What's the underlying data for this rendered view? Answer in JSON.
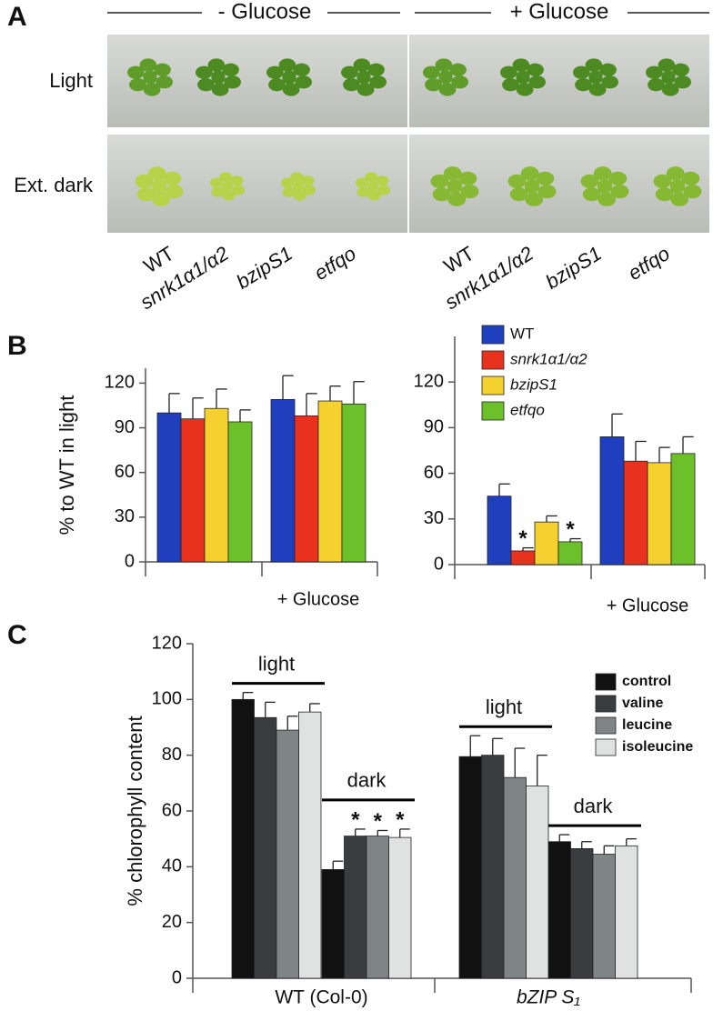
{
  "panel_labels": [
    "A",
    "B",
    "C"
  ],
  "panel_a": {
    "headers": [
      "- Glucose",
      "+ Glucose"
    ],
    "rows": [
      "Light",
      "Ext. dark"
    ],
    "genotypes": [
      "WT",
      "snrk1α1/α2",
      "bzipS1",
      "etfqo",
      "WT",
      "snrk1α1/α2",
      "bzipS1",
      "etfqo"
    ]
  },
  "chart_data": [
    {
      "type": "bar",
      "ylabel": "% to WT in light",
      "categories": [
        null,
        "+ Glucose"
      ],
      "ylim": [
        0,
        130
      ],
      "yticks": [
        0,
        30,
        60,
        90,
        120
      ],
      "grid": false,
      "series": [
        {
          "color": "#1f3fbf",
          "values": [
            100,
            109
          ],
          "errors": [
            13,
            16
          ]
        },
        {
          "color": "#e8321e",
          "values": [
            96,
            98
          ],
          "errors": [
            14,
            15
          ]
        },
        {
          "color": "#f5d130",
          "values": [
            103,
            108
          ],
          "errors": [
            13,
            10
          ]
        },
        {
          "color": "#6cc12a",
          "values": [
            94,
            106
          ],
          "errors": [
            8,
            15
          ]
        }
      ]
    },
    {
      "type": "bar",
      "categories": [
        null,
        "+ Glucose"
      ],
      "legend": "upper left",
      "ylim": [
        0,
        150
      ],
      "yticks": [
        0,
        30,
        60,
        90,
        120
      ],
      "grid": false,
      "series": [
        {
          "name": "WT",
          "color": "#1f3fbf",
          "values": [
            45,
            84
          ],
          "errors": [
            8,
            15
          ],
          "value_annotations": [
            null,
            null
          ]
        },
        {
          "name": "snrk1α1/α2",
          "color": "#e8321e",
          "values": [
            9,
            68
          ],
          "errors": [
            2,
            13
          ],
          "value_annotations": [
            "*",
            null
          ]
        },
        {
          "name": "bzipS1",
          "color": "#f5d130",
          "values": [
            28,
            67
          ],
          "errors": [
            4,
            10
          ],
          "value_annotations": [
            null,
            null
          ]
        },
        {
          "name": "etfqo",
          "color": "#6cc12a",
          "values": [
            15,
            73
          ],
          "errors": [
            2,
            11
          ],
          "value_annotations": [
            "*",
            null
          ]
        }
      ]
    },
    {
      "type": "bar",
      "ylabel": "% chlorophyll content",
      "categories": [
        "light",
        "dark",
        "light",
        "dark"
      ],
      "group_labels": [
        "WT (Col-0)",
        "bZIP S₁"
      ],
      "legend": "upper right",
      "ylim": [
        0,
        120
      ],
      "yticks": [
        0,
        20,
        40,
        60,
        80,
        100,
        120
      ],
      "grid": false,
      "series": [
        {
          "name": "control",
          "color": "#111111",
          "values": [
            100,
            39,
            79.5,
            49
          ],
          "errors": [
            2.5,
            3,
            7.5,
            2.5
          ],
          "value_annotations": [
            null,
            null,
            null,
            null
          ]
        },
        {
          "name": "valine",
          "color": "#3a3d40",
          "values": [
            93.5,
            51,
            80,
            46.5
          ],
          "errors": [
            5.5,
            2.5,
            6,
            2.5
          ],
          "value_annotations": [
            null,
            "*",
            null,
            null
          ]
        },
        {
          "name": "leucine",
          "color": "#7f8587",
          "values": [
            89,
            51,
            72,
            44.5
          ],
          "errors": [
            5,
            2,
            10.5,
            3
          ],
          "value_annotations": [
            null,
            "*",
            null,
            null
          ]
        },
        {
          "name": "isoleucine",
          "color": "#e0e2e2",
          "values": [
            95.5,
            50.5,
            69,
            47.5
          ],
          "errors": [
            3,
            3,
            11,
            2.5
          ],
          "value_annotations": [
            null,
            "*",
            null,
            null
          ]
        }
      ]
    }
  ]
}
